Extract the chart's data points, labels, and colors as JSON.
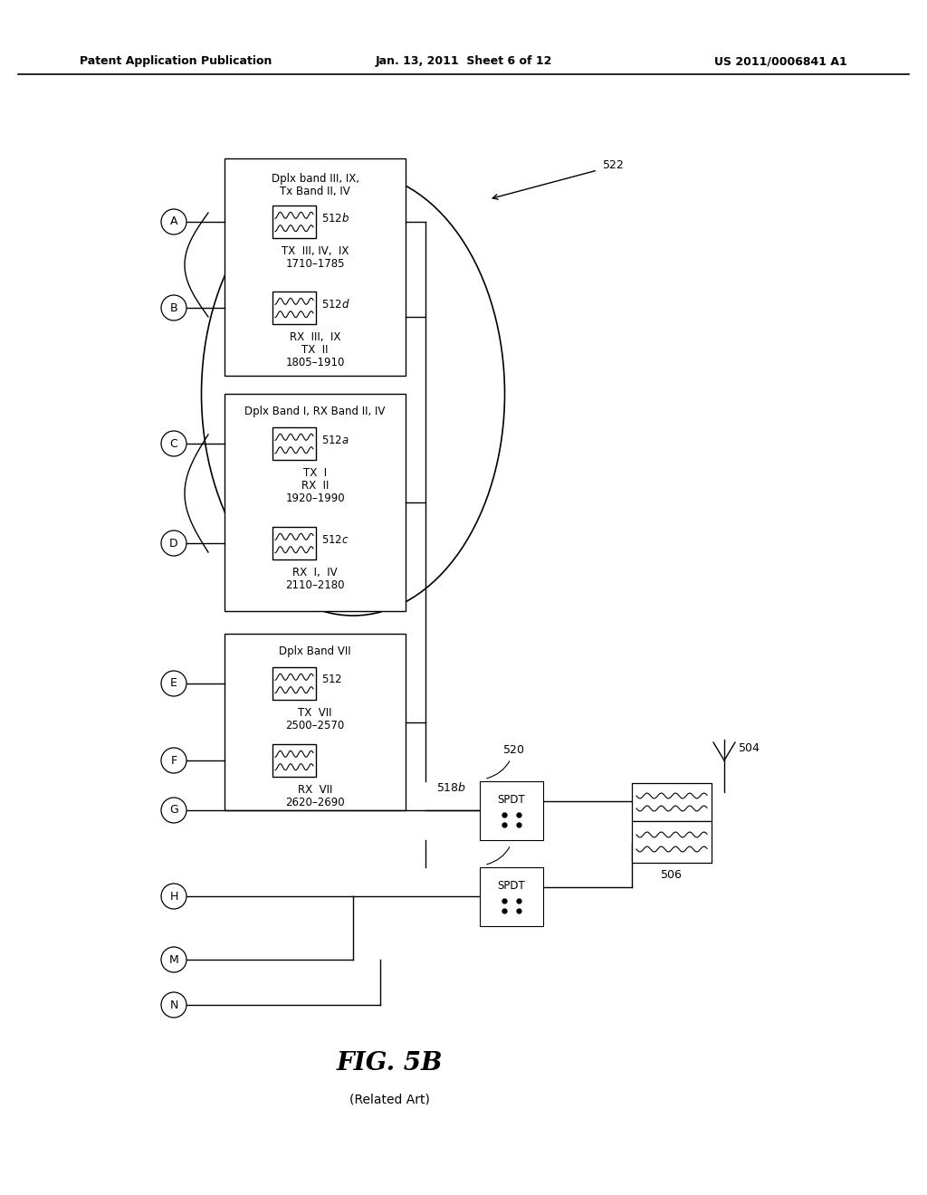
{
  "title_left": "Patent Application Publication",
  "title_mid": "Jan. 13, 2011  Sheet 6 of 12",
  "title_right": "US 2011/0006841 A1",
  "fig_label": "FIG. 5B",
  "fig_sublabel": "(Related Art)",
  "background": "#ffffff"
}
